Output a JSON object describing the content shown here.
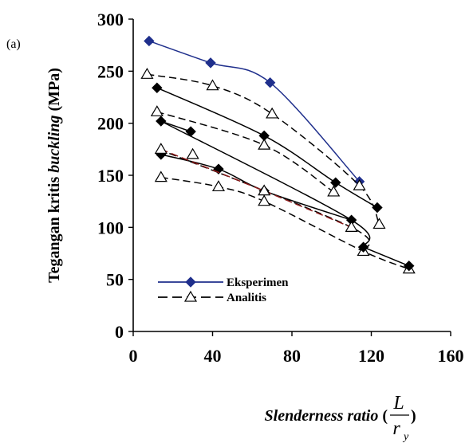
{
  "chart_data": {
    "type": "line",
    "panel_label": "(a)",
    "ylabel_parts": [
      {
        "text": "Tegangan kritis ",
        "italic": false
      },
      {
        "text": "buckling",
        "italic": true
      },
      {
        "text": " (MPa)",
        "italic": false
      }
    ],
    "xlabel_parts": [
      {
        "text": "Slenderness ratio",
        "italic": true
      },
      {
        "text": " (",
        "italic": false
      }
    ],
    "xlabel_fraction": {
      "numerator": "L",
      "denominator": "r",
      "denominator_sub": "y"
    },
    "xlabel_close": ")",
    "xlim": [
      0,
      160
    ],
    "ylim": [
      0,
      300
    ],
    "xticks": [
      0,
      40,
      80,
      120,
      160
    ],
    "yticks": [
      0,
      50,
      100,
      150,
      200,
      250,
      300
    ],
    "grid": false,
    "legend_position": "bottom-left",
    "legend": [
      {
        "label": "Eksperimen",
        "color": "#1f2f8c",
        "marker": "diamond",
        "dash": "solid"
      },
      {
        "label": "Analitis",
        "color": "#000000",
        "marker": "triangle",
        "dash": "dashed"
      }
    ],
    "series": [
      {
        "kind": "eksperimen",
        "color": "#1f2f8c",
        "marker": "diamond",
        "dash": "solid",
        "x": [
          8,
          39,
          69,
          114
        ],
        "y": [
          279,
          258,
          239,
          144
        ]
      },
      {
        "kind": "analitis",
        "color": "#000000",
        "marker": "triangle",
        "dash": "dashed",
        "x": [
          7,
          40,
          70,
          114,
          124
        ],
        "y": [
          247,
          236,
          209,
          140,
          103
        ]
      },
      {
        "kind": "eksperimen",
        "color": "#000000",
        "marker": "diamond",
        "dash": "solid",
        "x": [
          12,
          66,
          102,
          123
        ],
        "y": [
          234,
          188,
          143,
          119
        ]
      },
      {
        "kind": "analitis",
        "color": "#000000",
        "marker": "triangle",
        "dash": "dashed",
        "x": [
          12,
          66,
          101
        ],
        "y": [
          211,
          179,
          134
        ]
      },
      {
        "kind": "eksperimen",
        "color": "#000000",
        "marker": "diamond",
        "dash": "solid",
        "x": [
          14,
          29
        ],
        "y": [
          202,
          192
        ]
      },
      {
        "kind": "eksperimen",
        "color": "#000000",
        "marker": "diamond",
        "dash": "solid",
        "x": [
          14,
          43,
          66,
          110
        ],
        "y": [
          170,
          156,
          135,
          107
        ]
      },
      {
        "kind": "analitis",
        "color": "#000000",
        "marker": "triangle",
        "dash": "dashed",
        "x": [
          30
        ],
        "y": [
          170
        ]
      },
      {
        "kind": "analitis",
        "color": "#8b1a1a",
        "marker": "triangle",
        "dash": "dashed",
        "x": [
          14,
          66,
          110
        ],
        "y": [
          175,
          135,
          100
        ]
      },
      {
        "kind": "analitis",
        "color": "#000000",
        "marker": "triangle",
        "dash": "dashed",
        "x": [
          14,
          43,
          66,
          116,
          139
        ],
        "y": [
          148,
          139,
          125,
          77,
          60
        ]
      },
      {
        "kind": "eksperimen",
        "color": "#000000",
        "marker": "diamond",
        "dash": "solid",
        "x": [
          116,
          139
        ],
        "y": [
          81,
          63
        ]
      }
    ],
    "extra_lines": [
      {
        "color": "#000000",
        "dash": "solid",
        "x": [
          13,
          110,
          116
        ],
        "y": [
          203,
          107,
          81
        ]
      },
      {
        "color": "#000000",
        "dash": "dashed",
        "x": [
          13,
          110,
          116
        ],
        "y": [
          175,
          100,
          77
        ]
      }
    ]
  }
}
